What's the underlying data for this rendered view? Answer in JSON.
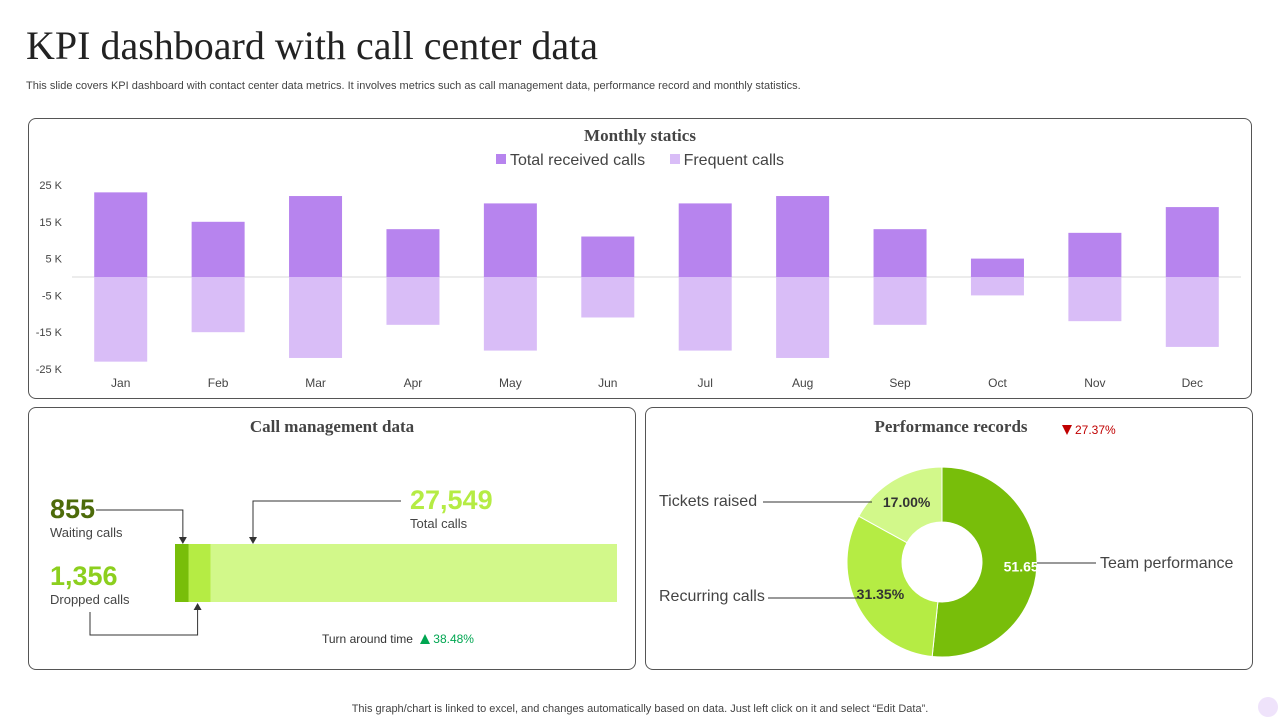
{
  "page": {
    "title": "KPI dashboard with call center data",
    "subtitle": "This slide covers KPI dashboard with contact center data metrics. It involves metrics such as call management data, performance record and monthly statistics.",
    "footer": "This graph/chart is linked to excel,  and changes automatically based on data. Just left click on it and select “Edit Data”."
  },
  "monthly": {
    "title": "Monthly statics",
    "legend": [
      "Total received calls",
      "Frequent calls"
    ]
  },
  "call_management": {
    "title": "Call management data",
    "waiting_value": "855",
    "waiting_label": "Waiting calls",
    "dropped_value": "1,356",
    "dropped_label": "Dropped  calls",
    "total_value": "27,549",
    "total_label": "Total  calls",
    "turnaround_label": "Turn around time",
    "turnaround_change": "38.48%"
  },
  "performance": {
    "title": "Performance records",
    "change": "27.37%",
    "labels": {
      "tickets": "Tickets raised",
      "recurring": "Recurring calls",
      "team": "Team performance"
    }
  },
  "colors": {
    "received": "#b784ee",
    "frequent": "#d9bdf7",
    "green_dark": "#78be0a",
    "green_mid": "#b5ec44",
    "green_light": "#d2f88a",
    "waiting_text": "#4d6b0a",
    "dropped_text": "#8ccf1e",
    "total_text": "#b5ec44",
    "down": "#c00000",
    "up": "#00a651"
  },
  "chart_data": [
    {
      "type": "bar",
      "title": "Monthly statics",
      "categories": [
        "Jan",
        "Feb",
        "Mar",
        "Apr",
        "May",
        "Jun",
        "Jul",
        "Aug",
        "Sep",
        "Oct",
        "Nov",
        "Dec"
      ],
      "series": [
        {
          "name": "Total received calls",
          "values": [
            23000,
            15000,
            22000,
            13000,
            20000,
            11000,
            20000,
            22000,
            13000,
            5000,
            12000,
            19000
          ]
        },
        {
          "name": "Frequent calls",
          "values": [
            -23000,
            -15000,
            -22000,
            -13000,
            -20000,
            -11000,
            -20000,
            -22000,
            -13000,
            -5000,
            -12000,
            -19000
          ]
        }
      ],
      "ylim": [
        -25000,
        25000
      ],
      "yticks": [
        25000,
        15000,
        5000,
        -5000,
        -15000,
        -25000
      ],
      "ytick_labels": [
        "25 K",
        "15 K",
        "5 K",
        "-5 K",
        "-15 K",
        "-25 K"
      ],
      "legend_position": "top",
      "grid": false
    },
    {
      "type": "bar",
      "title": "Call management data",
      "orientation": "horizontal-stacked",
      "categories": [
        "Waiting calls",
        "Dropped  calls",
        "Total  calls"
      ],
      "values": [
        855,
        1356,
        27549
      ]
    },
    {
      "type": "pie",
      "title": "Performance records",
      "donut": true,
      "categories": [
        "Team performance",
        "Recurring calls",
        "Tickets raised"
      ],
      "values": [
        51.65,
        31.35,
        17.0
      ],
      "value_labels": [
        "51.65%",
        "31.35%",
        "17.00%"
      ]
    }
  ]
}
